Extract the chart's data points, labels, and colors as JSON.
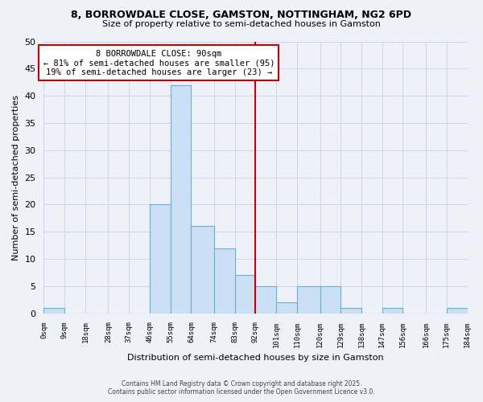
{
  "title1": "8, BORROWDALE CLOSE, GAMSTON, NOTTINGHAM, NG2 6PD",
  "title2": "Size of property relative to semi-detached houses in Gamston",
  "xlabel": "Distribution of semi-detached houses by size in Gamston",
  "ylabel": "Number of semi-detached properties",
  "bin_edges": [
    0,
    9,
    18,
    28,
    37,
    46,
    55,
    64,
    74,
    83,
    92,
    101,
    110,
    120,
    129,
    138,
    147,
    156,
    166,
    175,
    184
  ],
  "bin_labels": [
    "0sqm",
    "9sqm",
    "18sqm",
    "28sqm",
    "37sqm",
    "46sqm",
    "55sqm",
    "64sqm",
    "74sqm",
    "83sqm",
    "92sqm",
    "101sqm",
    "110sqm",
    "120sqm",
    "129sqm",
    "138sqm",
    "147sqm",
    "156sqm",
    "166sqm",
    "175sqm",
    "184sqm"
  ],
  "counts": [
    1,
    0,
    0,
    0,
    0,
    20,
    42,
    16,
    12,
    7,
    5,
    2,
    5,
    5,
    1,
    0,
    1,
    0,
    0,
    1
  ],
  "bar_color": "#cce0f5",
  "bar_edge_color": "#6aaed6",
  "vline_x": 92,
  "vline_color": "#cc0000",
  "annotation_title": "8 BORROWDALE CLOSE: 90sqm",
  "annotation_line1": "← 81% of semi-detached houses are smaller (95)",
  "annotation_line2": "19% of semi-detached houses are larger (23) →",
  "annotation_box_color": "white",
  "annotation_box_edge": "#cc0000",
  "ylim": [
    0,
    50
  ],
  "yticks": [
    0,
    5,
    10,
    15,
    20,
    25,
    30,
    35,
    40,
    45,
    50
  ],
  "grid_color": "#d0d8e8",
  "footer1": "Contains HM Land Registry data © Crown copyright and database right 2025.",
  "footer2": "Contains public sector information licensed under the Open Government Licence v3.0.",
  "bg_color": "#eef2f8"
}
